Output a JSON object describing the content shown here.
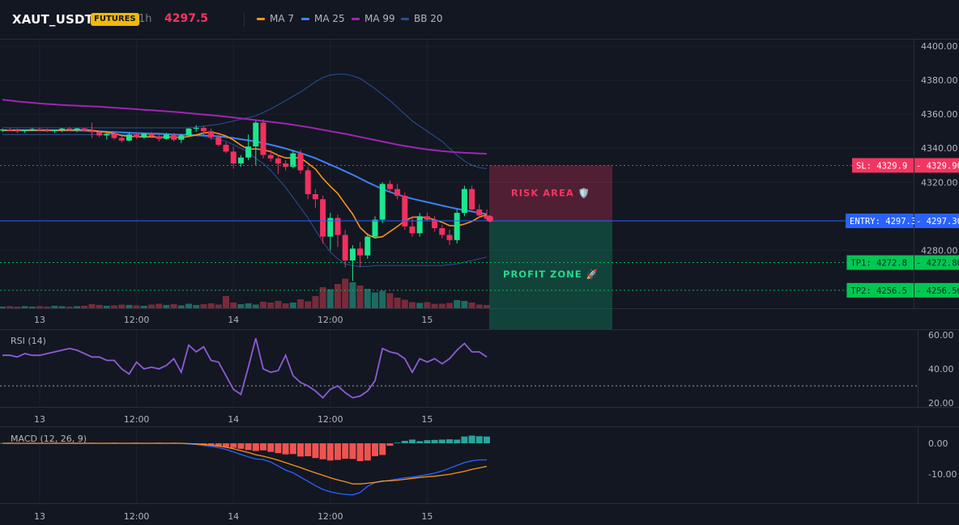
{
  "header": {
    "symbol": "XAUT_USDT",
    "badge": "FUTURES",
    "interval": "1h",
    "last_price": "4297.5",
    "legend": [
      {
        "label": "MA 7",
        "color": "#f7931a"
      },
      {
        "label": "MA 25",
        "color": "#3b82f6"
      },
      {
        "label": "MA 99",
        "color": "#9c27b0"
      },
      {
        "label": "BB 20",
        "color": "#2b4f99"
      }
    ]
  },
  "chart_data": [
    {
      "type": "candlestick",
      "name": "price",
      "y_ticks": [
        "4400.00",
        "4380.00",
        "4360.00",
        "4340.00",
        "4320.00",
        "4280.00"
      ],
      "ylim": [
        4255,
        4400
      ],
      "x_ticks": [
        "13",
        "12:00",
        "14",
        "12:00",
        "15"
      ],
      "x_tick_index": [
        5,
        18,
        31,
        44,
        57
      ],
      "candles": [
        [
          4350.5,
          4351.5,
          4349.5,
          4351.0
        ],
        [
          4351.0,
          4352.0,
          4350.0,
          4350.5
        ],
        [
          4350.5,
          4351.5,
          4349.0,
          4350.0
        ],
        [
          4350.0,
          4351.0,
          4349.0,
          4350.8
        ],
        [
          4350.8,
          4352.0,
          4350.0,
          4351.2
        ],
        [
          4351.2,
          4352.0,
          4350.0,
          4350.5
        ],
        [
          4350.5,
          4351.5,
          4349.5,
          4350.0
        ],
        [
          4350.0,
          4351.0,
          4349.0,
          4350.6
        ],
        [
          4350.6,
          4352.0,
          4349.5,
          4351.5
        ],
        [
          4351.5,
          4352.5,
          4350.0,
          4350.8
        ],
        [
          4350.8,
          4352.0,
          4349.5,
          4351.6
        ],
        [
          4351.6,
          4352.0,
          4350.0,
          4350.4
        ],
        [
          4350.4,
          4355.0,
          4346.0,
          4349.5
        ],
        [
          4349.5,
          4350.5,
          4346.5,
          4347.5
        ],
        [
          4347.5,
          4349.0,
          4345.0,
          4348.5
        ],
        [
          4348.5,
          4349.5,
          4345.0,
          4346.0
        ],
        [
          4346.0,
          4347.5,
          4343.5,
          4344.5
        ],
        [
          4344.5,
          4349.0,
          4344.0,
          4348.0
        ],
        [
          4348.0,
          4349.0,
          4345.5,
          4346.5
        ],
        [
          4346.5,
          4349.0,
          4345.5,
          4348.5
        ],
        [
          4348.5,
          4349.5,
          4346.0,
          4347.0
        ],
        [
          4347.0,
          4348.0,
          4344.0,
          4345.5
        ],
        [
          4345.5,
          4349.0,
          4345.0,
          4348.0
        ],
        [
          4348.0,
          4349.0,
          4344.0,
          4345.0
        ],
        [
          4345.0,
          4348.5,
          4343.0,
          4347.5
        ],
        [
          4347.5,
          4352.0,
          4347.0,
          4351.5
        ],
        [
          4351.5,
          4353.5,
          4349.5,
          4352.0
        ],
        [
          4352.0,
          4353.0,
          4348.0,
          4350.0
        ],
        [
          4350.0,
          4351.5,
          4345.0,
          4346.5
        ],
        [
          4346.5,
          4348.0,
          4341.0,
          4342.0
        ],
        [
          4342.0,
          4343.5,
          4337.0,
          4338.0
        ],
        [
          4338.0,
          4341.0,
          4328.0,
          4331.0
        ],
        [
          4331.0,
          4336.0,
          4329.0,
          4334.5
        ],
        [
          4334.5,
          4348.0,
          4333.0,
          4341.0
        ],
        [
          4341.0,
          4356.0,
          4330.0,
          4355.0
        ],
        [
          4355.0,
          4357.0,
          4334.0,
          4336.0
        ],
        [
          4336.0,
          4339.0,
          4332.0,
          4334.0
        ],
        [
          4334.0,
          4336.0,
          4325.0,
          4331.0
        ],
        [
          4331.0,
          4333.0,
          4327.0,
          4329.0
        ],
        [
          4329.0,
          4339.0,
          4328.0,
          4337.0
        ],
        [
          4337.0,
          4339.0,
          4325.0,
          4327.0
        ],
        [
          4327.0,
          4329.0,
          4310.0,
          4313.0
        ],
        [
          4313.0,
          4316.0,
          4305.0,
          4310.0
        ],
        [
          4310.0,
          4312.0,
          4284.0,
          4288.0
        ],
        [
          4288.0,
          4302.0,
          4280.0,
          4299.0
        ],
        [
          4299.0,
          4301.0,
          4282.0,
          4289.0
        ],
        [
          4289.0,
          4292.0,
          4270.0,
          4274.0
        ],
        [
          4274.0,
          4283.0,
          4262.0,
          4281.0
        ],
        [
          4281.0,
          4285.0,
          4270.0,
          4277.0
        ],
        [
          4277.0,
          4290.0,
          4275.0,
          4288.0
        ],
        [
          4288.0,
          4300.0,
          4287.0,
          4298.0
        ],
        [
          4298.0,
          4320.0,
          4296.0,
          4319.0
        ],
        [
          4319.0,
          4321.0,
          4314.0,
          4316.0
        ],
        [
          4316.0,
          4319.0,
          4310.0,
          4312.0
        ],
        [
          4312.0,
          4314.0,
          4292.0,
          4294.0
        ],
        [
          4294.0,
          4300.0,
          4288.0,
          4290.0
        ],
        [
          4290.0,
          4302.0,
          4288.0,
          4300.0
        ],
        [
          4300.0,
          4302.0,
          4297.0,
          4298.0
        ],
        [
          4298.0,
          4300.0,
          4291.0,
          4293.0
        ],
        [
          4293.0,
          4295.0,
          4287.0,
          4289.0
        ],
        [
          4289.0,
          4292.0,
          4283.0,
          4286.0
        ],
        [
          4286.0,
          4304.0,
          4284.0,
          4302.0
        ],
        [
          4302.0,
          4318.0,
          4300.0,
          4316.0
        ],
        [
          4316.0,
          4318.0,
          4303.0,
          4304.0
        ],
        [
          4304.0,
          4307.0,
          4299.0,
          4300.5
        ],
        [
          4300.5,
          4304.0,
          4297.0,
          4298.5
        ]
      ],
      "ma7": [
        4350.5,
        4350.6,
        4350.6,
        4350.6,
        4350.6,
        4350.6,
        4350.5,
        4350.5,
        4350.5,
        4350.6,
        4350.7,
        4350.8,
        4350.5,
        4349.9,
        4349.3,
        4348.6,
        4347.5,
        4347.0,
        4346.8,
        4346.6,
        4346.7,
        4346.4,
        4346.5,
        4346.6,
        4346.3,
        4346.9,
        4347.8,
        4349.0,
        4349.4,
        4348.6,
        4347.2,
        4344.8,
        4341.8,
        4339.3,
        4339.6,
        4339.0,
        4338.0,
        4335.8,
        4334.3,
        4334.3,
        4334.4,
        4331.1,
        4327.8,
        4322.2,
        4317.6,
        4313.4,
        4307.2,
        4301.3,
        4293.4,
        4289.3,
        4287.3,
        4288.0,
        4291.0,
        4294.0,
        4297.3,
        4299.4,
        4299.6,
        4299.1,
        4298.0,
        4296.5,
        4294.5,
        4294.3,
        4295.4,
        4297.0,
        4299.5,
        4301.0
      ],
      "ma25": [
        4350.5,
        4350.5,
        4350.5,
        4350.5,
        4350.5,
        4350.5,
        4350.5,
        4350.5,
        4350.5,
        4350.5,
        4350.4,
        4350.3,
        4350.1,
        4349.9,
        4349.7,
        4349.5,
        4349.3,
        4349.1,
        4348.9,
        4348.8,
        4348.6,
        4348.5,
        4348.3,
        4348.1,
        4347.9,
        4347.8,
        4347.6,
        4347.5,
        4347.3,
        4347.0,
        4346.5,
        4346.0,
        4345.3,
        4344.6,
        4343.9,
        4343.0,
        4342.0,
        4341.0,
        4339.8,
        4338.5,
        4337.2,
        4335.7,
        4334.1,
        4332.2,
        4330.3,
        4328.4,
        4326.4,
        4324.4,
        4322.2,
        4320.0,
        4318.0,
        4316.0,
        4314.3,
        4312.8,
        4311.5,
        4310.3,
        4309.3,
        4308.3,
        4307.3,
        4306.3,
        4305.3,
        4304.4,
        4303.6,
        4302.8,
        4302.0,
        4301.3
      ],
      "ma99": [
        4368.5,
        4368.0,
        4367.5,
        4367.1,
        4366.7,
        4366.3,
        4366.0,
        4365.7,
        4365.4,
        4365.2,
        4365.0,
        4364.8,
        4364.6,
        4364.4,
        4364.1,
        4363.8,
        4363.5,
        4363.2,
        4362.9,
        4362.6,
        4362.3,
        4362.0,
        4361.7,
        4361.4,
        4361.0,
        4360.6,
        4360.2,
        4359.8,
        4359.4,
        4359.0,
        4358.5,
        4358.0,
        4357.5,
        4357.0,
        4356.5,
        4356.0,
        4355.5,
        4355.0,
        4354.4,
        4353.8,
        4353.1,
        4352.4,
        4351.6,
        4350.8,
        4350.0,
        4349.2,
        4348.4,
        4347.5,
        4346.6,
        4345.7,
        4344.8,
        4343.9,
        4343.0,
        4342.1,
        4341.3,
        4340.6,
        4339.9,
        4339.3,
        4338.8,
        4338.3,
        4337.9,
        4337.6,
        4337.3,
        4337.1,
        4336.9,
        4336.7
      ],
      "bb_upper": [
        4352.0,
        4352.0,
        4352.0,
        4352.0,
        4352.0,
        4352.0,
        4352.0,
        4352.0,
        4352.0,
        4352.0,
        4352.0,
        4352.0,
        4352.0,
        4352.0,
        4352.0,
        4352.0,
        4352.0,
        4352.0,
        4352.0,
        4352.0,
        4352.0,
        4352.0,
        4352.0,
        4352.0,
        4352.0,
        4352.0,
        4352.5,
        4353.0,
        4353.5,
        4354.0,
        4355.0,
        4356.0,
        4357.0,
        4358.0,
        4359.0,
        4361.0,
        4363.0,
        4365.5,
        4368.0,
        4370.5,
        4373.0,
        4376.0,
        4379.0,
        4381.5,
        4383.0,
        4383.5,
        4383.5,
        4382.5,
        4381.0,
        4378.0,
        4375.0,
        4371.5,
        4368.0,
        4364.0,
        4360.0,
        4356.0,
        4353.0,
        4350.0,
        4347.0,
        4344.0,
        4340.0,
        4336.0,
        4332.5,
        4330.0,
        4328.5,
        4328.0
      ],
      "bb_lower": [
        4348.0,
        4348.0,
        4348.0,
        4348.0,
        4348.0,
        4348.0,
        4348.0,
        4348.0,
        4348.0,
        4348.0,
        4348.0,
        4348.0,
        4348.0,
        4348.0,
        4348.0,
        4348.0,
        4348.0,
        4348.0,
        4348.0,
        4348.0,
        4348.0,
        4348.0,
        4348.0,
        4348.0,
        4348.0,
        4348.0,
        4347.5,
        4347.0,
        4346.0,
        4345.0,
        4344.0,
        4342.0,
        4340.0,
        4337.5,
        4334.0,
        4331.0,
        4327.0,
        4322.0,
        4317.0,
        4311.0,
        4305.0,
        4299.0,
        4292.0,
        4285.0,
        4279.0,
        4275.0,
        4272.0,
        4271.0,
        4270.5,
        4270.5,
        4271.0,
        4271.0,
        4271.0,
        4271.0,
        4271.0,
        4271.0,
        4271.0,
        4271.0,
        4271.0,
        4271.0,
        4271.5,
        4272.0,
        4273.0,
        4274.0,
        4275.0,
        4276.0
      ],
      "volume": [
        4,
        5,
        4,
        5,
        4,
        5,
        4,
        6,
        5,
        4,
        5,
        6,
        10,
        8,
        6,
        7,
        9,
        8,
        7,
        6,
        9,
        11,
        8,
        10,
        7,
        11,
        8,
        10,
        12,
        9,
        30,
        14,
        10,
        12,
        9,
        16,
        14,
        18,
        12,
        14,
        22,
        17,
        30,
        52,
        47,
        60,
        73,
        64,
        56,
        48,
        39,
        43,
        37,
        26,
        21,
        15,
        13,
        15,
        11,
        11,
        13,
        20,
        18,
        14,
        9,
        8
      ],
      "rows": [
        {
          "label": "SL: 4329.9",
          "value": "4329.90",
          "price": 4329.9,
          "color": "#f23661"
        },
        {
          "label": "ENTRY: 4297.3",
          "value": "4297.30",
          "price": 4297.3,
          "color": "#2962ff"
        },
        {
          "label": "TP1: 4272.8",
          "value": "4272.80",
          "price": 4272.8,
          "color": "#00c853"
        },
        {
          "label": "TP2: 4256.5",
          "value": "4256.50",
          "price": 4256.5,
          "color": "#00c853"
        }
      ],
      "zones": {
        "risk": "RISK AREA 🛡️",
        "profit": "PROFIT ZONE 🚀"
      }
    },
    {
      "type": "line",
      "name": "rsi",
      "title": "RSI (14)",
      "y_ticks": [
        "60.00",
        "40.00",
        "20.00"
      ],
      "ylim": [
        18,
        64
      ],
      "level": 30,
      "x_ticks": [
        "13",
        "12:00",
        "14",
        "12:00",
        "15"
      ],
      "values": [
        48,
        48,
        47,
        49,
        48,
        48,
        49,
        50,
        51,
        52,
        51,
        49,
        47,
        47,
        45,
        45,
        40,
        37,
        44,
        40,
        41,
        40,
        42,
        46,
        38,
        54,
        50,
        53,
        45,
        44,
        36,
        28,
        25,
        41,
        58,
        40,
        38,
        39,
        48,
        36,
        32,
        30,
        27,
        23,
        28,
        30,
        26,
        23,
        24,
        27,
        33,
        52,
        50,
        49,
        46,
        38,
        46,
        44,
        46,
        43,
        46,
        51,
        55,
        50,
        50,
        47
      ]
    },
    {
      "type": "bar",
      "name": "macd",
      "title": "MACD (12, 26, 9)",
      "y_ticks": [
        "0.00",
        "-10.00"
      ],
      "ylim": [
        -18,
        5
      ],
      "x_ticks": [
        "13",
        "12:00",
        "14",
        "12:00",
        "15"
      ],
      "hist": [
        0.1,
        0.2,
        0.1,
        0.1,
        0.2,
        0.1,
        0.1,
        0.2,
        0.1,
        0.2,
        0.2,
        0.1,
        0.2,
        0.1,
        0.1,
        0.2,
        0.1,
        0.1,
        0.2,
        0.1,
        0.1,
        0.2,
        0.1,
        0.2,
        0.1,
        -0.3,
        -0.5,
        -0.8,
        -0.5,
        -1.0,
        -1.2,
        -1.5,
        -1.8,
        -2.2,
        -2.5,
        -2.3,
        -2.8,
        -3.2,
        -3.6,
        -3.5,
        -4.3,
        -4.2,
        -4.8,
        -5.2,
        -5.6,
        -5.4,
        -5.0,
        -5.1,
        -5.8,
        -5.6,
        -4.2,
        -3.8,
        -0.8,
        0.2,
        0.8,
        1.2,
        0.7,
        1.0,
        1.1,
        1.2,
        1.3,
        1.2,
        2.2,
        2.5,
        2.3,
        2.2
      ],
      "macd": [
        0,
        0,
        0,
        0,
        0,
        0,
        0,
        0,
        0,
        0,
        0,
        0,
        0,
        0,
        0,
        0,
        0,
        0,
        0,
        0,
        0,
        0,
        0,
        0,
        0,
        -0.2,
        -0.4,
        -0.7,
        -1,
        -1.4,
        -2,
        -2.8,
        -3.6,
        -4.4,
        -5.1,
        -5.3,
        -6.1,
        -7.4,
        -8.7,
        -9.6,
        -11.0,
        -12.4,
        -13.8,
        -15.0,
        -15.8,
        -16.3,
        -16.6,
        -16.8,
        -16.0,
        -14.0,
        -12.8,
        -12.4,
        -12.0,
        -11.6,
        -11.2,
        -11.0,
        -10.6,
        -10.2,
        -9.7,
        -9.0,
        -8.1,
        -7.2,
        -6.3,
        -5.7,
        -5.4,
        -5.4
      ],
      "signal": [
        0,
        0,
        0,
        0,
        0,
        0,
        0,
        0,
        0,
        0,
        0,
        0,
        0,
        0,
        0,
        0,
        0,
        0,
        0,
        0,
        0,
        0,
        0,
        0,
        0,
        -0.1,
        -0.2,
        -0.4,
        -0.6,
        -0.9,
        -1.3,
        -1.8,
        -2.4,
        -3.0,
        -3.7,
        -4.2,
        -4.8,
        -5.5,
        -6.3,
        -7.1,
        -7.9,
        -8.8,
        -9.6,
        -10.4,
        -11.2,
        -11.9,
        -12.5,
        -13.2,
        -13.2,
        -13.0,
        -12.7,
        -12.3,
        -12.2,
        -12.0,
        -11.7,
        -11.4,
        -11.1,
        -10.9,
        -10.7,
        -10.4,
        -10.1,
        -9.6,
        -9.1,
        -8.5,
        -8.0,
        -7.5
      ]
    }
  ]
}
